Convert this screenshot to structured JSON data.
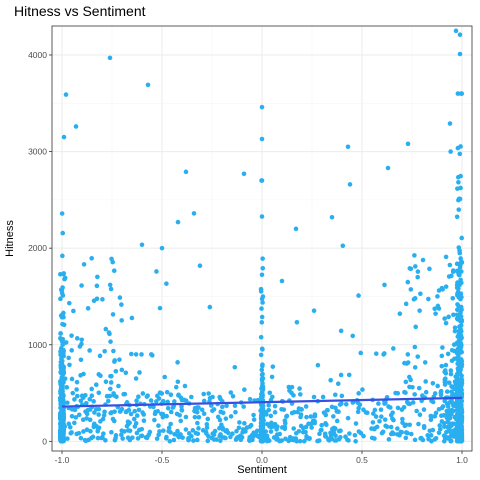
{
  "chart_data": {
    "type": "scatter",
    "title": "Hitness vs Sentiment",
    "xlabel": "Sentiment",
    "ylabel": "Hitness",
    "xlim": [
      -1.05,
      1.05
    ],
    "ylim": [
      -100,
      4300
    ],
    "x_ticks": [
      -1.0,
      -0.5,
      0.0,
      0.5,
      1.0
    ],
    "x_tick_labels": [
      "-1.0",
      "-0.5",
      "0.0",
      "0.5",
      "1.0"
    ],
    "y_ticks": [
      0,
      1000,
      2000,
      3000,
      4000
    ],
    "y_tick_labels": [
      "0",
      "1000",
      "2000",
      "3000",
      "4000"
    ],
    "grid": true,
    "point_color": "#29aff0",
    "trend_color": "#3a4ee0",
    "trend_line": {
      "x": [
        -1.0,
        1.0
      ],
      "y": [
        360,
        450
      ]
    },
    "highlighted_points": {
      "x": [
        -0.98,
        -0.99,
        -0.93,
        -0.76,
        -0.57,
        -0.38,
        -0.09,
        0.0,
        0.0,
        0.43,
        0.63,
        0.73,
        0.97,
        0.99,
        0.99,
        0.94,
        0.44,
        0.35,
        -0.5,
        -0.42,
        -0.34,
        0.17,
        0.1
      ],
      "y": [
        3590,
        3150,
        3260,
        3970,
        3690,
        2790,
        2770,
        3460,
        3130,
        3050,
        2830,
        3080,
        4250,
        4210,
        4010,
        3290,
        2660,
        2320,
        2000,
        2270,
        2360,
        2200,
        1660
      ]
    },
    "bulk_points_note": "several thousand points concentrated near Hitness 0-600, dense vertical bands at Sentiment -1.0, 0.0 and 1.0"
  }
}
